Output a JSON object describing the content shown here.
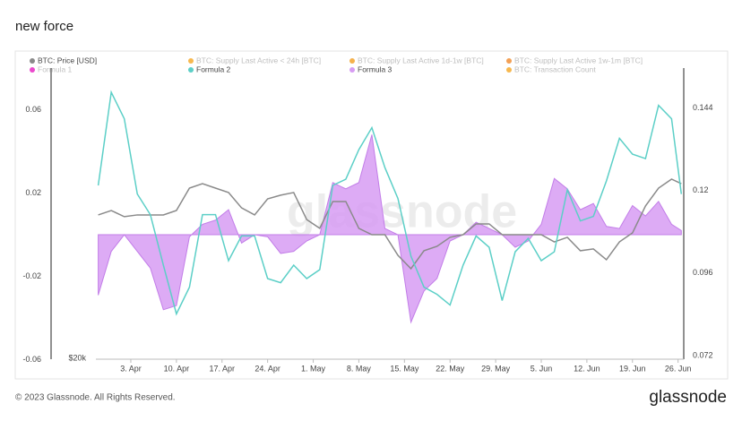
{
  "header": {
    "title": "new force"
  },
  "footer": {
    "copyright": "© 2023 Glassnode. All Rights Reserved.",
    "logo": "glassnode"
  },
  "chart_data": {
    "type": "line",
    "watermark": "glassnode",
    "x": [
      -5,
      -3,
      -1,
      1,
      3,
      5,
      7,
      9,
      11,
      13,
      15,
      17,
      19,
      21,
      23,
      25,
      27,
      29,
      31,
      33,
      35,
      37,
      39,
      41,
      43,
      45,
      47,
      49,
      51,
      53,
      55,
      57,
      59,
      61,
      63,
      65,
      67,
      69,
      71,
      73,
      75,
      77,
      79,
      81,
      83,
      84.5
    ],
    "xlim": [
      -5.36,
      84.87
    ],
    "xticks": [
      {
        "value": 0,
        "label": "3. Apr"
      },
      {
        "value": 7,
        "label": "10. Apr"
      },
      {
        "value": 14,
        "label": "17. Apr"
      },
      {
        "value": 21,
        "label": "24. Apr"
      },
      {
        "value": 28,
        "label": "1. May"
      },
      {
        "value": 35,
        "label": "8. May"
      },
      {
        "value": 42,
        "label": "15. May"
      },
      {
        "value": 49,
        "label": "22. May"
      },
      {
        "value": 56,
        "label": "29. May"
      },
      {
        "value": 63,
        "label": "5. Jun"
      },
      {
        "value": 70,
        "label": "12. Jun"
      },
      {
        "value": 77,
        "label": "19. Jun"
      },
      {
        "value": 84,
        "label": "26. Jun"
      }
    ],
    "ylim": [
      -0.0593,
      0.0761
    ],
    "yticks": [
      0.06,
      0.02,
      -0.02,
      -0.06
    ],
    "y2lim": [
      0.0712,
      0.1533
    ],
    "y2ticks": [
      0.144,
      0.12,
      0.096,
      0.072
    ],
    "y3lim": [
      20000,
      36000
    ],
    "y3ticks": [
      {
        "value": 20000,
        "label": "$20k"
      }
    ],
    "series": [
      {
        "name": "BTC: Price [USD]",
        "color": "#8a8a8a",
        "axis": "y3",
        "style": "line",
        "values": [
          28130,
          28380,
          28030,
          28130,
          28130,
          28130,
          28380,
          29650,
          29900,
          29650,
          29400,
          28530,
          28130,
          29040,
          29250,
          29400,
          27870,
          27370,
          28890,
          28890,
          27370,
          27010,
          27010,
          25840,
          25080,
          26100,
          26350,
          26860,
          27010,
          27620,
          27620,
          27010,
          27010,
          27010,
          27010,
          26600,
          26860,
          26100,
          26200,
          25590,
          26600,
          27110,
          28640,
          29650,
          30160,
          29900
        ]
      },
      {
        "name": "BTC: Supply Last Active < 24h [BTC]",
        "color": "#f5a623",
        "hidden": true
      },
      {
        "name": "BTC: Supply Last Active 1d-1w [BTC]",
        "color": "#f29e1f",
        "hidden": true
      },
      {
        "name": "BTC: Supply Last Active 1w-1m [BTC]",
        "color": "#f0882a",
        "hidden": true
      },
      {
        "name": "Formula 1",
        "color": "#e61cc0",
        "hidden": true
      },
      {
        "name": "Formula 2",
        "color": "#5ccfc7",
        "axis": "y2",
        "style": "line",
        "values": [
          0.1215,
          0.1486,
          0.1409,
          0.119,
          0.113,
          0.0983,
          0.0841,
          0.0919,
          0.113,
          0.113,
          0.0996,
          0.1068,
          0.1068,
          0.0944,
          0.0932,
          0.0983,
          0.0944,
          0.097,
          0.1215,
          0.1233,
          0.1319,
          0.1383,
          0.1267,
          0.1177,
          0.1009,
          0.0919,
          0.0898,
          0.0867,
          0.0983,
          0.1068,
          0.1035,
          0.088,
          0.1022,
          0.1061,
          0.0996,
          0.1022,
          0.1202,
          0.1112,
          0.1125,
          0.1228,
          0.1352,
          0.1306,
          0.1293,
          0.1448,
          0.1409,
          0.119
        ]
      },
      {
        "name": "Formula 3",
        "color": "#d79cf3",
        "axis": "y",
        "style": "area",
        "values": [
          -0.029,
          -0.008,
          0,
          -0.008,
          -0.016,
          -0.036,
          -0.034,
          -0.001,
          0.005,
          0.007,
          0.012,
          -0.004,
          0,
          -0.001,
          -0.009,
          -0.008,
          -0.003,
          0,
          0.025,
          0.022,
          0.025,
          0.048,
          0.003,
          0,
          -0.042,
          -0.027,
          -0.021,
          -0.003,
          0,
          0.006,
          0.003,
          0,
          -0.006,
          -0.003,
          0.005,
          0.027,
          0.022,
          0.012,
          0.015,
          0.004,
          0.003,
          0.014,
          0.009,
          0.016,
          0.005,
          0.002
        ]
      },
      {
        "name": "BTC: Transaction Count",
        "color": "#f5a623",
        "hidden": true
      }
    ]
  }
}
